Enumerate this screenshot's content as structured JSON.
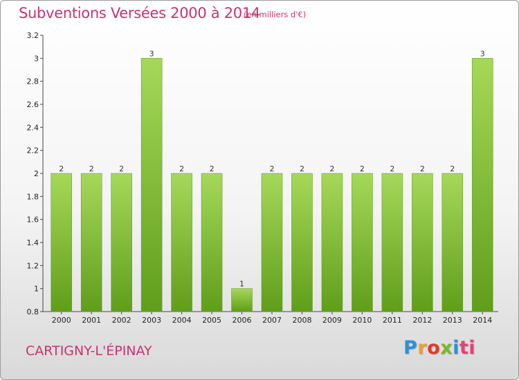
{
  "chart_data": {
    "type": "bar",
    "title": "Subventions Versées 2000 à 2014",
    "unit_note": "(en milliers d'€)",
    "categories": [
      "2000",
      "2001",
      "2002",
      "2003",
      "2004",
      "2005",
      "2006",
      "2007",
      "2008",
      "2009",
      "2010",
      "2011",
      "2012",
      "2013",
      "2014"
    ],
    "values": [
      2,
      2,
      2,
      3,
      2,
      2,
      1,
      2,
      2,
      2,
      2,
      2,
      2,
      2,
      3
    ],
    "value_labels": [
      "2",
      "2",
      "2",
      "3",
      "2",
      "2",
      "1",
      "2",
      "2",
      "2",
      "2",
      "2",
      "2",
      "2",
      "3"
    ],
    "ylim": [
      0.8,
      3.2
    ],
    "yticks": [
      0.8,
      1,
      1.2,
      1.4,
      1.6,
      1.8,
      2,
      2.2,
      2.4,
      2.6,
      2.8,
      3,
      3.2
    ],
    "ytick_labels": [
      "0.8",
      "1",
      "1.2",
      "1.4",
      "1.6",
      "1.8",
      "2",
      "2.2",
      "2.4",
      "2.6",
      "2.8",
      "3",
      "3.2"
    ],
    "grid": false,
    "colors": {
      "bar_light": "#a6d85a",
      "bar_dark": "#5f9e1a",
      "title": "#c8336e"
    }
  },
  "footer": {
    "commune": "CARTIGNY-L'ÉPINAY",
    "logo_letters": [
      "P",
      "r",
      "o",
      "x",
      "i",
      "ti"
    ]
  }
}
